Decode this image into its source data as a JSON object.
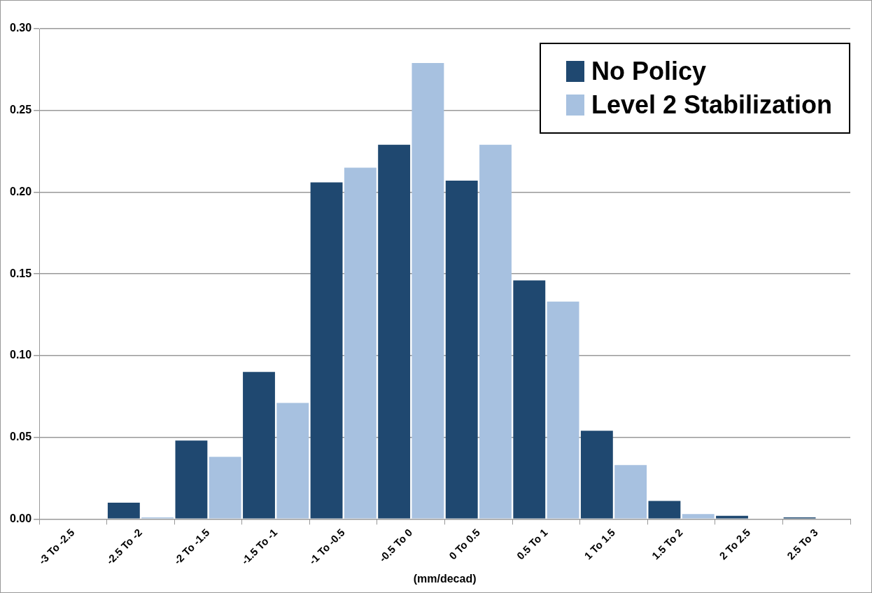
{
  "chart_data": {
    "type": "bar",
    "xlabel": "(mm/decad)",
    "categories": [
      "-3 To -2.5",
      "-2.5 To -2",
      "-2 To -1.5",
      "-1.5 To -1",
      "-1 To -0.5",
      "-0.5 To 0",
      "0 To 0.5",
      "0.5 To 1",
      "1 To 1.5",
      "1.5 To 2",
      "2 To 2.5",
      "2.5 To 3"
    ],
    "series": [
      {
        "name": "No Policy",
        "color": "#1f4870",
        "values": [
          0,
          0.01,
          0.048,
          0.09,
          0.206,
          0.229,
          0.207,
          0.146,
          0.054,
          0.011,
          0.002,
          0.001
        ]
      },
      {
        "name": "Level 2 Stabilization",
        "color": "#a7c1e0",
        "values": [
          0,
          0.001,
          0.038,
          0.071,
          0.215,
          0.279,
          0.229,
          0.133,
          0.033,
          0.003,
          0,
          0
        ]
      }
    ],
    "ylim": [
      0,
      0.3
    ],
    "yticks": [
      {
        "value": 0,
        "label": "0.00"
      },
      {
        "value": 0.05,
        "label": "0.05"
      },
      {
        "value": 0.1,
        "label": "0.10"
      },
      {
        "value": 0.15,
        "label": "0.15"
      },
      {
        "value": 0.2,
        "label": "0.20"
      },
      {
        "value": 0.25,
        "label": "0.25"
      },
      {
        "value": 0.3,
        "label": "0.30"
      }
    ],
    "grid": "y",
    "legend": "top right"
  }
}
